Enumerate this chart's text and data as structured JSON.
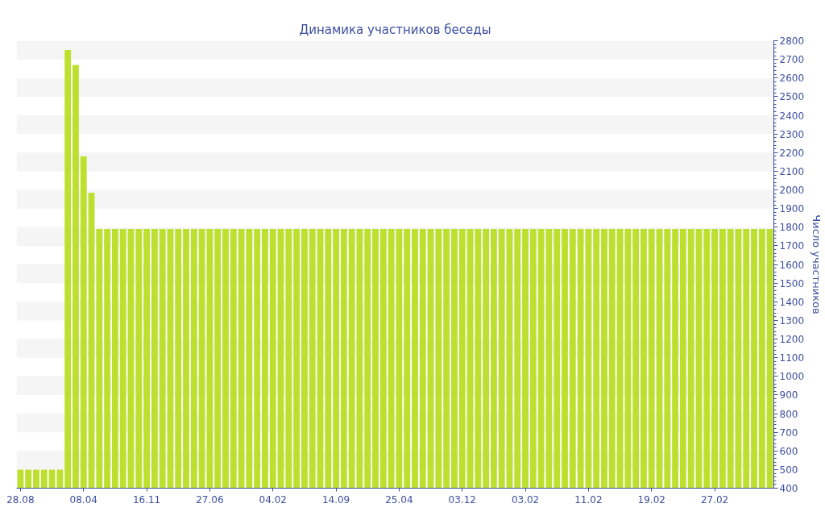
{
  "chart_data": {
    "type": "bar",
    "title": "Динамика участников беседы",
    "ylabel": "Число участников",
    "categories": [
      "28.08",
      null,
      null,
      null,
      null,
      null,
      null,
      null,
      "08.04",
      null,
      null,
      null,
      null,
      null,
      null,
      null,
      "16.11",
      null,
      null,
      null,
      null,
      null,
      null,
      null,
      "27.06",
      null,
      null,
      null,
      null,
      null,
      null,
      null,
      "04.02",
      null,
      null,
      null,
      null,
      null,
      null,
      null,
      "14.09",
      null,
      null,
      null,
      null,
      null,
      null,
      null,
      "25.04",
      null,
      null,
      null,
      null,
      null,
      null,
      null,
      "03.12",
      null,
      null,
      null,
      null,
      null,
      null,
      null,
      "03.02",
      null,
      null,
      null,
      null,
      null,
      null,
      null,
      "11.02",
      null,
      null,
      null,
      null,
      null,
      null,
      null,
      "19.02",
      null,
      null,
      null,
      null,
      null,
      null,
      null,
      "27.02",
      null,
      null,
      null,
      null,
      null,
      null,
      null
    ],
    "values": [
      500,
      500,
      500,
      500,
      500,
      500,
      2750,
      2670,
      2180,
      1985,
      1790,
      1790,
      1790,
      1790,
      1790,
      1790,
      1790,
      1790,
      1790,
      1790,
      1790,
      1790,
      1790,
      1790,
      1790,
      1790,
      1790,
      1790,
      1790,
      1790,
      1790,
      1790,
      1790,
      1790,
      1790,
      1790,
      1790,
      1790,
      1790,
      1790,
      1790,
      1790,
      1790,
      1790,
      1790,
      1790,
      1790,
      1790,
      1790,
      1790,
      1790,
      1790,
      1790,
      1790,
      1790,
      1790,
      1790,
      1790,
      1790,
      1790,
      1790,
      1790,
      1790,
      1790,
      1790,
      1790,
      1790,
      1790,
      1790,
      1790,
      1790,
      1790,
      1790,
      1790,
      1790,
      1790,
      1790,
      1790,
      1790,
      1790,
      1790,
      1790,
      1790,
      1790,
      1790,
      1790,
      1790,
      1790,
      1790,
      1790,
      1790,
      1790,
      1790,
      1790,
      1790,
      1790
    ],
    "color": "#bde02f",
    "ylim": [
      400,
      2800
    ],
    "yticks": [
      400,
      500,
      600,
      700,
      800,
      900,
      1000,
      1100,
      1200,
      1300,
      1400,
      1500,
      1600,
      1700,
      1800,
      1900,
      2000,
      2100,
      2200,
      2300,
      2400,
      2500,
      2600,
      2700,
      2800
    ],
    "bands": [
      {
        "axis": "y",
        "from": 500,
        "to": 600,
        "color": "#f5f5f5"
      },
      {
        "axis": "y",
        "from": 700,
        "to": 800,
        "color": "#f5f5f5"
      },
      {
        "axis": "y",
        "from": 900,
        "to": 1000,
        "color": "#f5f5f5"
      },
      {
        "axis": "y",
        "from": 1100,
        "to": 1200,
        "color": "#f5f5f5"
      },
      {
        "axis": "y",
        "from": 1300,
        "to": 1400,
        "color": "#f5f5f5"
      },
      {
        "axis": "y",
        "from": 1500,
        "to": 1600,
        "color": "#f5f5f5"
      },
      {
        "axis": "y",
        "from": 1700,
        "to": 1800,
        "color": "#f5f5f5"
      },
      {
        "axis": "y",
        "from": 1900,
        "to": 2000,
        "color": "#f5f5f5"
      },
      {
        "axis": "y",
        "from": 2100,
        "to": 2200,
        "color": "#f5f5f5"
      },
      {
        "axis": "y",
        "from": 2300,
        "to": 2400,
        "color": "#f5f5f5"
      },
      {
        "axis": "y",
        "from": 2500,
        "to": 2600,
        "color": "#f5f5f5"
      },
      {
        "axis": "y",
        "from": 2700,
        "to": 2800,
        "color": "#f5f5f5"
      }
    ]
  }
}
